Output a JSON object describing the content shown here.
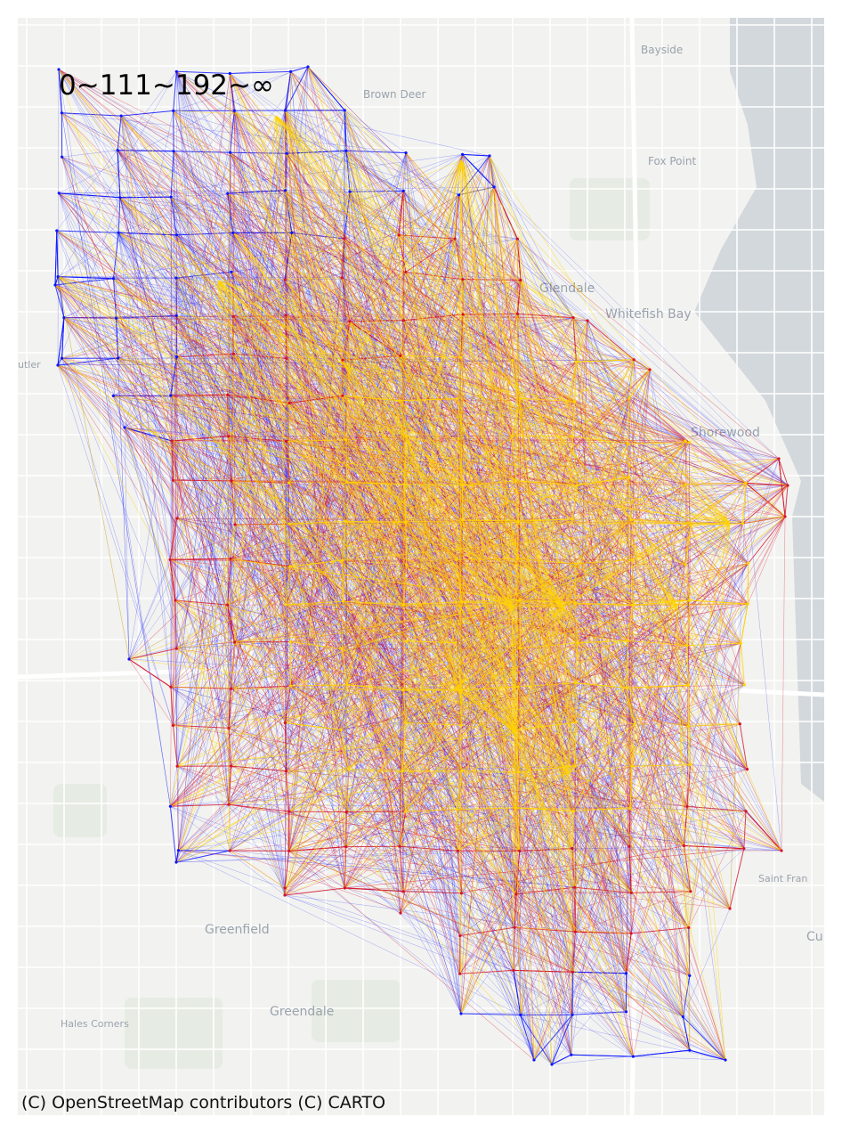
{
  "map": {
    "legend_title": "0~111~192~∞",
    "attribution": "(C) OpenStreetMap contributors (C) CARTO",
    "place_labels": [
      {
        "id": "bayside",
        "text": "Bayside"
      },
      {
        "id": "brown-deer",
        "text": "Brown Deer"
      },
      {
        "id": "fox-point",
        "text": "Fox Point"
      },
      {
        "id": "glendale",
        "text": "Glendale"
      },
      {
        "id": "whitefish-bay",
        "text": "Whitefish Bay"
      },
      {
        "id": "butler",
        "text": "utler"
      },
      {
        "id": "shorewood",
        "text": "Shorewood"
      },
      {
        "id": "saint-francis",
        "text": "Saint Fran"
      },
      {
        "id": "cudahy",
        "text": "Cu"
      },
      {
        "id": "greenfield",
        "text": "Greenfield"
      },
      {
        "id": "greendale",
        "text": "Greendale"
      },
      {
        "id": "hales-corners",
        "text": "Hales Corners"
      }
    ],
    "flow_classes": [
      {
        "range": "0~111",
        "color": "#0a14ff"
      },
      {
        "range": "111~192",
        "color": "#d4122a"
      },
      {
        "range": "192~∞",
        "color": "#ffd400"
      }
    ],
    "colors": {
      "land": "#f2f2f0",
      "water": "#d3d8dc",
      "road": "#ffffff",
      "park": "#e6ece3"
    }
  }
}
